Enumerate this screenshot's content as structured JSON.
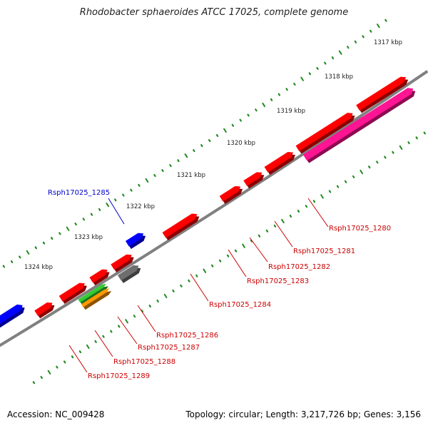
{
  "title": "Rhodobacter sphaeroides ATCC 17025, complete genome",
  "footer": {
    "accession": "Accession: NC_009428",
    "summary": "Topology: circular; Length: 3,217,726 bp; Genes: 3,156"
  },
  "colors": {
    "backbone": "#808080",
    "red_feature": "#ff0000",
    "blue_feature": "#0000ff",
    "gray_feature": "#6e6e6e",
    "green_feature": "#33cc33",
    "orange_feature": "#ff9900",
    "pink_feature": "#ff1493",
    "tick": "#228b22",
    "label_red": "#cc0000",
    "label_blue": "#0000cc"
  },
  "scale_ticks": [
    {
      "label": "1317 kbp"
    },
    {
      "label": "1318 kbp"
    },
    {
      "label": "1319 kbp"
    },
    {
      "label": "1320 kbp"
    },
    {
      "label": "1321 kbp"
    },
    {
      "label": "1322 kbp"
    },
    {
      "label": "1323 kbp"
    },
    {
      "label": "1324 kbp"
    }
  ],
  "gene_labels": [
    {
      "name": "Rsph17025_1280",
      "strand": "forward"
    },
    {
      "name": "Rsph17025_1281",
      "strand": "forward"
    },
    {
      "name": "Rsph17025_1282",
      "strand": "forward"
    },
    {
      "name": "Rsph17025_1283",
      "strand": "forward"
    },
    {
      "name": "Rsph17025_1284",
      "strand": "forward"
    },
    {
      "name": "Rsph17025_1285",
      "strand": "forward"
    },
    {
      "name": "Rsph17025_1286",
      "strand": "forward"
    },
    {
      "name": "Rsph17025_1287",
      "strand": "forward"
    },
    {
      "name": "Rsph17025_1288",
      "strand": "forward"
    },
    {
      "name": "Rsph17025_1289",
      "strand": "forward"
    }
  ]
}
